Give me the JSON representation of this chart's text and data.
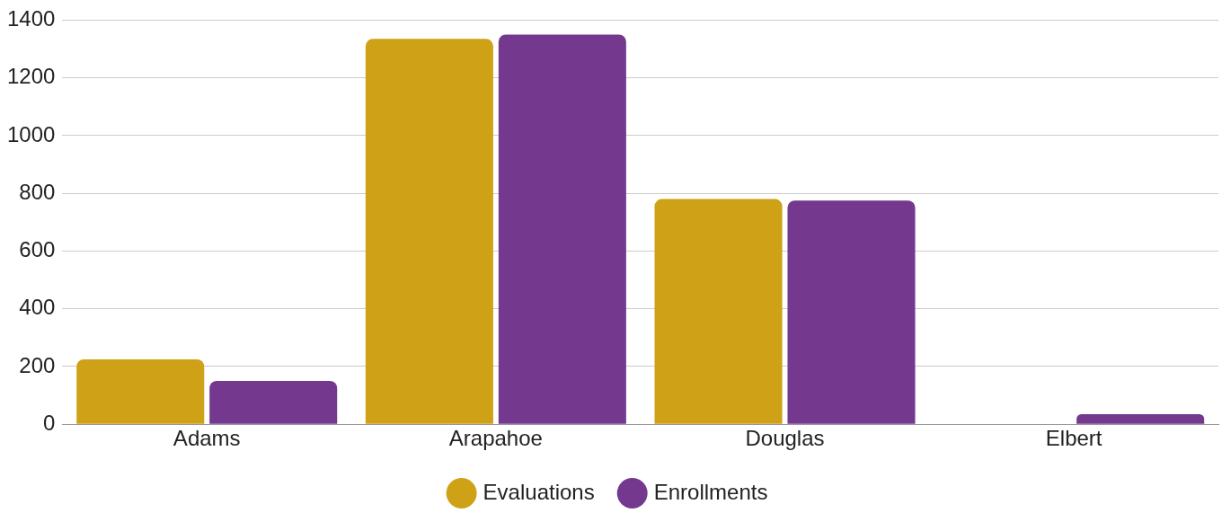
{
  "chart_data": {
    "type": "bar",
    "categories": [
      "Adams",
      "Arapahoe",
      "Douglas",
      "Elbert"
    ],
    "series": [
      {
        "name": "Evaluations",
        "color": "#cfa117",
        "values": [
          225,
          1335,
          780,
          0
        ]
      },
      {
        "name": "Enrollments",
        "color": "#74398f",
        "values": [
          150,
          1350,
          775,
          35
        ]
      }
    ],
    "ylim": [
      0,
      1400
    ],
    "yticks": [
      0,
      200,
      400,
      600,
      800,
      1000,
      1200,
      1400
    ],
    "grid": "y",
    "legend": "bottom"
  }
}
